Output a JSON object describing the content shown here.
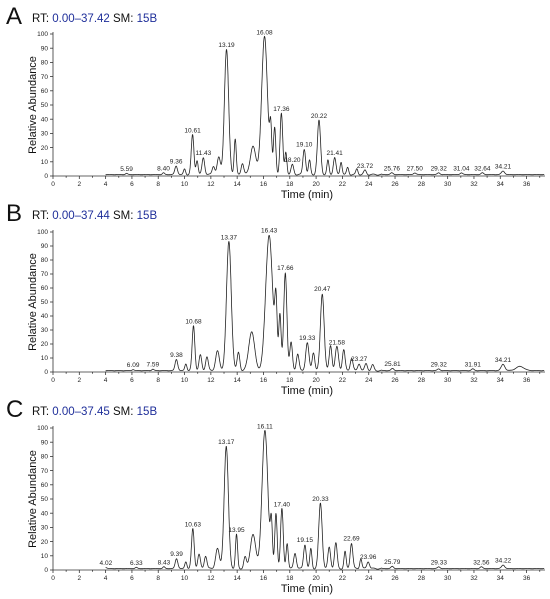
{
  "chart_data": [
    {
      "type": "line",
      "panel_label": "A",
      "header": {
        "rt_label": "RT:",
        "rt_range": "0.00–37.42",
        "sm_label": "SM:",
        "sm_value": "15B"
      },
      "xlabel": "Time (min)",
      "ylabel": "Relative Abundance",
      "xlim": [
        0,
        37.4
      ],
      "ylim": [
        0,
        100
      ],
      "x_ticks": [
        0,
        2,
        4,
        6,
        8,
        10,
        12,
        14,
        16,
        18,
        20,
        22,
        24,
        26,
        28,
        30,
        32,
        34,
        36
      ],
      "y_ticks": [
        0,
        10,
        20,
        30,
        40,
        50,
        60,
        70,
        80,
        90,
        100
      ],
      "baseline": 1,
      "peaks": [
        {
          "label": "5.59",
          "x": 5.59,
          "y": 0.8,
          "w": 0.08
        },
        {
          "label": "8.40",
          "x": 8.4,
          "y": 1.2,
          "w": 0.08
        },
        {
          "label": "9.36",
          "x": 9.36,
          "y": 6,
          "w": 0.1
        },
        {
          "label": "",
          "x": 10.0,
          "y": 4,
          "w": 0.08
        },
        {
          "label": "10.61",
          "x": 10.61,
          "y": 28,
          "w": 0.1
        },
        {
          "label": "11.43",
          "x": 11.43,
          "y": 12,
          "w": 0.1
        },
        {
          "label": "",
          "x": 10.95,
          "y": 10,
          "w": 0.08
        },
        {
          "label": "",
          "x": 12.2,
          "y": 6,
          "w": 0.1
        },
        {
          "label": "",
          "x": 12.6,
          "y": 12,
          "w": 0.12
        },
        {
          "label": "13.19",
          "x": 13.19,
          "y": 88,
          "w": 0.16
        },
        {
          "label": "",
          "x": 13.85,
          "y": 25,
          "w": 0.08
        },
        {
          "label": "",
          "x": 14.4,
          "y": 8,
          "w": 0.1
        },
        {
          "label": "",
          "x": 15.2,
          "y": 20,
          "w": 0.2
        },
        {
          "label": "16.08",
          "x": 16.08,
          "y": 97,
          "w": 0.22
        },
        {
          "label": "",
          "x": 16.55,
          "y": 30,
          "w": 0.08
        },
        {
          "label": "",
          "x": 16.85,
          "y": 33,
          "w": 0.09
        },
        {
          "label": "17.36",
          "x": 17.36,
          "y": 43,
          "w": 0.1
        },
        {
          "label": "",
          "x": 17.7,
          "y": 16,
          "w": 0.08
        },
        {
          "label": "18.20",
          "x": 18.2,
          "y": 7,
          "w": 0.1
        },
        {
          "label": "19.10",
          "x": 19.1,
          "y": 18,
          "w": 0.1
        },
        {
          "label": "",
          "x": 19.5,
          "y": 10,
          "w": 0.08
        },
        {
          "label": "20.22",
          "x": 20.22,
          "y": 38,
          "w": 0.12
        },
        {
          "label": "21.41",
          "x": 21.41,
          "y": 12,
          "w": 0.1
        },
        {
          "label": "",
          "x": 20.9,
          "y": 10,
          "w": 0.08
        },
        {
          "label": "",
          "x": 21.9,
          "y": 9,
          "w": 0.08
        },
        {
          "label": "",
          "x": 22.4,
          "y": 5,
          "w": 0.08
        },
        {
          "label": "23.72",
          "x": 23.72,
          "y": 3,
          "w": 0.1
        },
        {
          "label": "",
          "x": 23.1,
          "y": 4,
          "w": 0.08
        },
        {
          "label": "25.76",
          "x": 25.76,
          "y": 1.2,
          "w": 0.1
        },
        {
          "label": "27.50",
          "x": 27.5,
          "y": 1.2,
          "w": 0.1
        },
        {
          "label": "29.32",
          "x": 29.32,
          "y": 1.2,
          "w": 0.1
        },
        {
          "label": "31.04",
          "x": 31.04,
          "y": 1.2,
          "w": 0.1
        },
        {
          "label": "32.64",
          "x": 32.64,
          "y": 1.2,
          "w": 0.1
        },
        {
          "label": "34.21",
          "x": 34.21,
          "y": 2.5,
          "w": 0.12
        }
      ]
    },
    {
      "type": "line",
      "panel_label": "B",
      "header": {
        "rt_label": "RT:",
        "rt_range": "0.00–37.44",
        "sm_label": "SM:",
        "sm_value": "15B"
      },
      "xlabel": "Time (min)",
      "ylabel": "Relative Abundance",
      "xlim": [
        0,
        37.4
      ],
      "ylim": [
        0,
        100
      ],
      "x_ticks": [
        0,
        2,
        4,
        6,
        8,
        10,
        12,
        14,
        16,
        18,
        20,
        22,
        24,
        26,
        28,
        30,
        32,
        34,
        36
      ],
      "y_ticks": [
        0,
        10,
        20,
        30,
        40,
        50,
        60,
        70,
        80,
        90,
        100
      ],
      "baseline": 1,
      "peaks": [
        {
          "label": "6.09",
          "x": 6.09,
          "y": 0.8,
          "w": 0.08
        },
        {
          "label": "7.59",
          "x": 7.59,
          "y": 1.0,
          "w": 0.08
        },
        {
          "label": "9.38",
          "x": 9.38,
          "y": 8,
          "w": 0.1
        },
        {
          "label": "",
          "x": 10.1,
          "y": 5,
          "w": 0.08
        },
        {
          "label": "10.68",
          "x": 10.68,
          "y": 32,
          "w": 0.1
        },
        {
          "label": "",
          "x": 11.2,
          "y": 11,
          "w": 0.1
        },
        {
          "label": "",
          "x": 11.7,
          "y": 10,
          "w": 0.1
        },
        {
          "label": "",
          "x": 12.5,
          "y": 14,
          "w": 0.14
        },
        {
          "label": "13.37",
          "x": 13.37,
          "y": 92,
          "w": 0.18
        },
        {
          "label": "",
          "x": 14.1,
          "y": 13,
          "w": 0.1
        },
        {
          "label": "",
          "x": 15.1,
          "y": 28,
          "w": 0.22
        },
        {
          "label": "16.43",
          "x": 16.43,
          "y": 97,
          "w": 0.26
        },
        {
          "label": "",
          "x": 16.95,
          "y": 45,
          "w": 0.09
        },
        {
          "label": "",
          "x": 17.25,
          "y": 40,
          "w": 0.09
        },
        {
          "label": "17.66",
          "x": 17.66,
          "y": 70,
          "w": 0.12
        },
        {
          "label": "",
          "x": 18.1,
          "y": 20,
          "w": 0.1
        },
        {
          "label": "",
          "x": 18.6,
          "y": 12,
          "w": 0.1
        },
        {
          "label": "19.33",
          "x": 19.33,
          "y": 20,
          "w": 0.12
        },
        {
          "label": "",
          "x": 19.8,
          "y": 13,
          "w": 0.1
        },
        {
          "label": "20.47",
          "x": 20.47,
          "y": 55,
          "w": 0.14
        },
        {
          "label": "21.58",
          "x": 21.58,
          "y": 17,
          "w": 0.12
        },
        {
          "label": "",
          "x": 21.1,
          "y": 18,
          "w": 0.1
        },
        {
          "label": "",
          "x": 22.1,
          "y": 15,
          "w": 0.1
        },
        {
          "label": "23.27",
          "x": 23.27,
          "y": 5,
          "w": 0.1
        },
        {
          "label": "",
          "x": 22.7,
          "y": 9,
          "w": 0.1
        },
        {
          "label": "",
          "x": 23.8,
          "y": 5,
          "w": 0.1
        },
        {
          "label": "",
          "x": 24.3,
          "y": 4,
          "w": 0.1
        },
        {
          "label": "25.81",
          "x": 25.81,
          "y": 1.5,
          "w": 0.1
        },
        {
          "label": "29.32",
          "x": 29.32,
          "y": 1.2,
          "w": 0.1
        },
        {
          "label": "31.91",
          "x": 31.91,
          "y": 1.2,
          "w": 0.1
        },
        {
          "label": "34.21",
          "x": 34.21,
          "y": 4.5,
          "w": 0.14
        },
        {
          "label": "",
          "x": 35.5,
          "y": 3,
          "w": 0.3
        }
      ]
    },
    {
      "type": "line",
      "panel_label": "C",
      "header": {
        "rt_label": "RT:",
        "rt_range": "0.00–37.45",
        "sm_label": "SM:",
        "sm_value": "15B"
      },
      "xlabel": "Time (min)",
      "ylabel": "Relative Abundance",
      "xlim": [
        0,
        37.4
      ],
      "ylim": [
        0,
        100
      ],
      "x_ticks": [
        0,
        2,
        4,
        6,
        8,
        10,
        12,
        14,
        16,
        18,
        20,
        22,
        24,
        26,
        28,
        30,
        32,
        34,
        36
      ],
      "y_ticks": [
        0,
        10,
        20,
        30,
        40,
        50,
        60,
        70,
        80,
        90,
        100
      ],
      "baseline": 1,
      "peaks": [
        {
          "label": "4.02",
          "x": 4.02,
          "y": 0.8,
          "w": 0.08
        },
        {
          "label": "6.33",
          "x": 6.33,
          "y": 0.8,
          "w": 0.08
        },
        {
          "label": "8.43",
          "x": 8.43,
          "y": 1.2,
          "w": 0.08
        },
        {
          "label": "9.39",
          "x": 9.39,
          "y": 7,
          "w": 0.1
        },
        {
          "label": "",
          "x": 10.1,
          "y": 5,
          "w": 0.08
        },
        {
          "label": "10.63",
          "x": 10.63,
          "y": 28,
          "w": 0.1
        },
        {
          "label": "",
          "x": 11.1,
          "y": 10,
          "w": 0.1
        },
        {
          "label": "",
          "x": 11.6,
          "y": 9,
          "w": 0.1
        },
        {
          "label": "",
          "x": 12.5,
          "y": 14,
          "w": 0.14
        },
        {
          "label": "13.17",
          "x": 13.17,
          "y": 86,
          "w": 0.16
        },
        {
          "label": "13.95",
          "x": 13.95,
          "y": 24,
          "w": 0.08
        },
        {
          "label": "",
          "x": 14.6,
          "y": 8,
          "w": 0.1
        },
        {
          "label": "",
          "x": 15.2,
          "y": 24,
          "w": 0.2
        },
        {
          "label": "16.11",
          "x": 16.11,
          "y": 97,
          "w": 0.22
        },
        {
          "label": "",
          "x": 16.6,
          "y": 30,
          "w": 0.08
        },
        {
          "label": "",
          "x": 16.95,
          "y": 39,
          "w": 0.09
        },
        {
          "label": "17.40",
          "x": 17.4,
          "y": 42,
          "w": 0.1
        },
        {
          "label": "",
          "x": 17.8,
          "y": 18,
          "w": 0.08
        },
        {
          "label": "",
          "x": 18.4,
          "y": 11,
          "w": 0.1
        },
        {
          "label": "19.15",
          "x": 19.15,
          "y": 17,
          "w": 0.1
        },
        {
          "label": "",
          "x": 19.6,
          "y": 14,
          "w": 0.08
        },
        {
          "label": "20.33",
          "x": 20.33,
          "y": 46,
          "w": 0.13
        },
        {
          "label": "",
          "x": 21.0,
          "y": 15,
          "w": 0.1
        },
        {
          "label": "",
          "x": 21.5,
          "y": 18,
          "w": 0.1
        },
        {
          "label": "22.69",
          "x": 22.69,
          "y": 18,
          "w": 0.1
        },
        {
          "label": "",
          "x": 22.2,
          "y": 12,
          "w": 0.08
        },
        {
          "label": "23.96",
          "x": 23.96,
          "y": 5,
          "w": 0.1
        },
        {
          "label": "",
          "x": 23.4,
          "y": 7,
          "w": 0.08
        },
        {
          "label": "25.79",
          "x": 25.79,
          "y": 1.5,
          "w": 0.1
        },
        {
          "label": "29.33",
          "x": 29.33,
          "y": 1.2,
          "w": 0.1
        },
        {
          "label": "32.56",
          "x": 32.56,
          "y": 1.2,
          "w": 0.1
        },
        {
          "label": "34.22",
          "x": 34.22,
          "y": 2.5,
          "w": 0.12
        }
      ]
    }
  ]
}
